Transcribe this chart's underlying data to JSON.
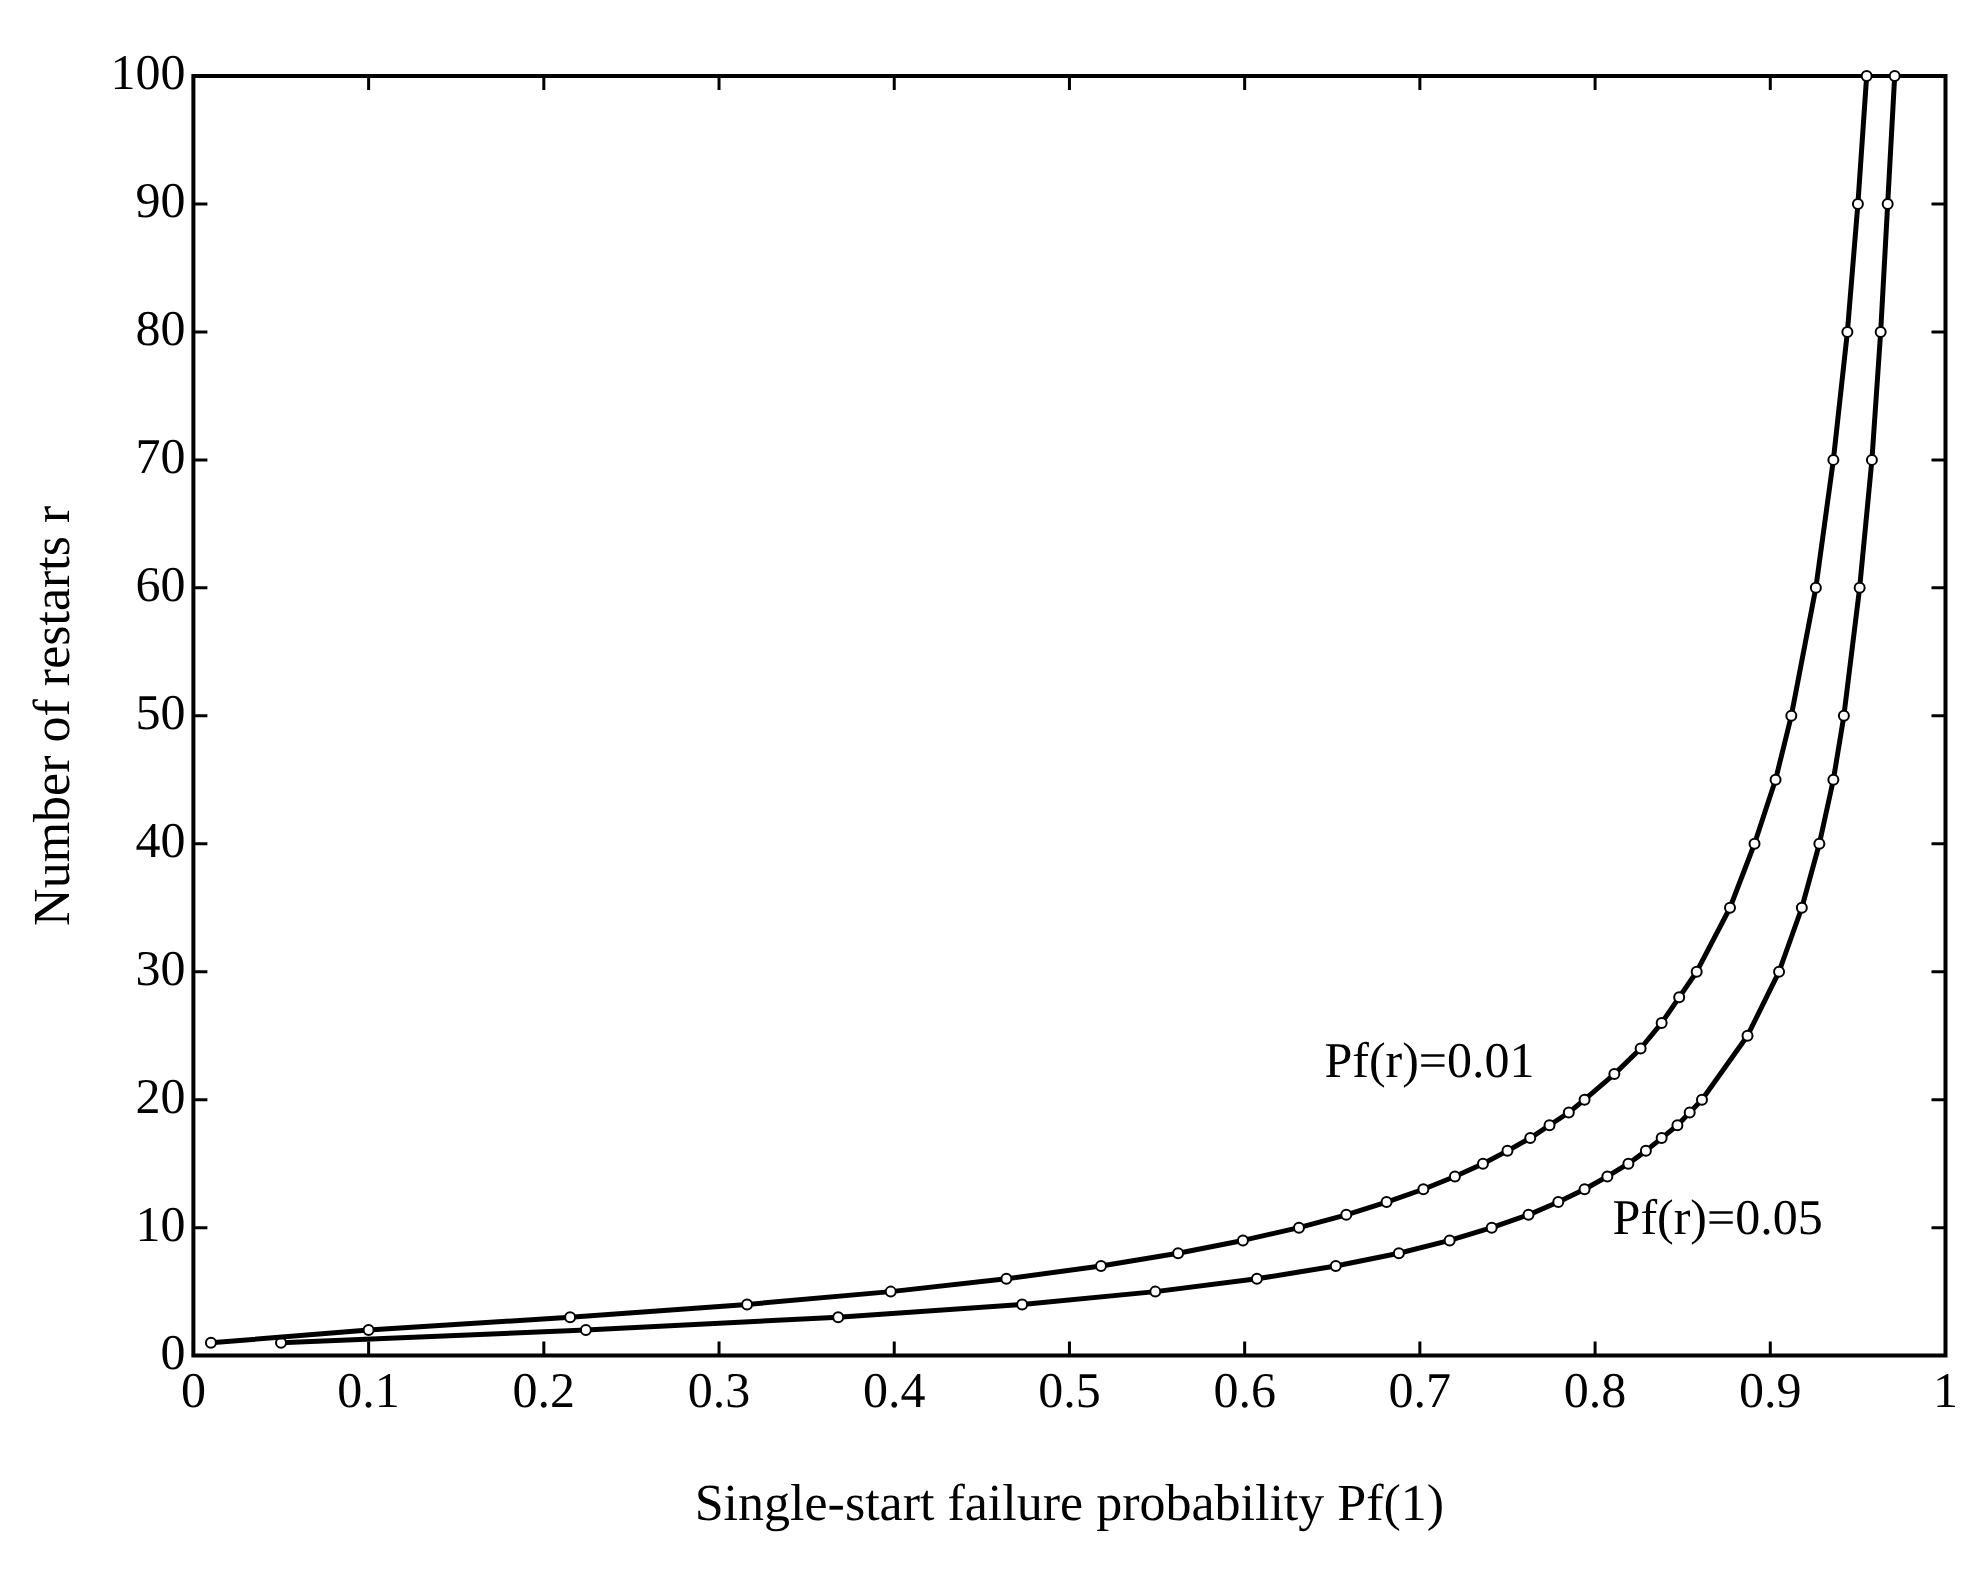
{
  "chart_data": {
    "type": "line",
    "xlabel": "Single-start failure probability Pf(1)",
    "ylabel": "Number of restarts r",
    "xlim": [
      0,
      1
    ],
    "ylim": [
      0,
      100
    ],
    "xticks": [
      0,
      0.1,
      0.2,
      0.3,
      0.4,
      0.5,
      0.6,
      0.7,
      0.8,
      0.9,
      1
    ],
    "yticks": [
      0,
      10,
      20,
      30,
      40,
      50,
      60,
      70,
      80,
      90,
      100
    ],
    "marker": "circle",
    "line_style": "solid",
    "series": [
      {
        "name": "Pf(r)=0.01",
        "color": "#000000",
        "x": [
          0.01,
          0.1,
          0.215,
          0.316,
          0.398,
          0.464,
          0.518,
          0.562,
          0.599,
          0.631,
          0.658,
          0.681,
          0.702,
          0.72,
          0.736,
          0.75,
          0.763,
          0.774,
          0.785,
          0.794,
          0.811,
          0.826,
          0.838,
          0.848,
          0.858,
          0.877,
          0.891,
          0.903,
          0.912,
          0.926,
          0.936,
          0.944,
          0.95,
          0.955
        ],
        "values": [
          1,
          2,
          3,
          4,
          5,
          6,
          7,
          8,
          9,
          10,
          11,
          12,
          13,
          14,
          15,
          16,
          17,
          18,
          19,
          20,
          22,
          24,
          26,
          28,
          30,
          35,
          40,
          45,
          50,
          60,
          70,
          80,
          90,
          100
        ]
      },
      {
        "name": "Pf(r)=0.05",
        "color": "#000000",
        "x": [
          0.05,
          0.224,
          0.368,
          0.473,
          0.549,
          0.607,
          0.652,
          0.688,
          0.717,
          0.741,
          0.762,
          0.779,
          0.794,
          0.807,
          0.819,
          0.829,
          0.838,
          0.847,
          0.854,
          0.861,
          0.887,
          0.905,
          0.918,
          0.928,
          0.936,
          0.942,
          0.951,
          0.958,
          0.963,
          0.967,
          0.971
        ],
        "values": [
          1,
          2,
          3,
          4,
          5,
          6,
          7,
          8,
          9,
          10,
          11,
          12,
          13,
          14,
          15,
          16,
          17,
          18,
          19,
          20,
          25,
          30,
          35,
          40,
          45,
          50,
          60,
          70,
          80,
          90,
          100
        ]
      }
    ]
  }
}
